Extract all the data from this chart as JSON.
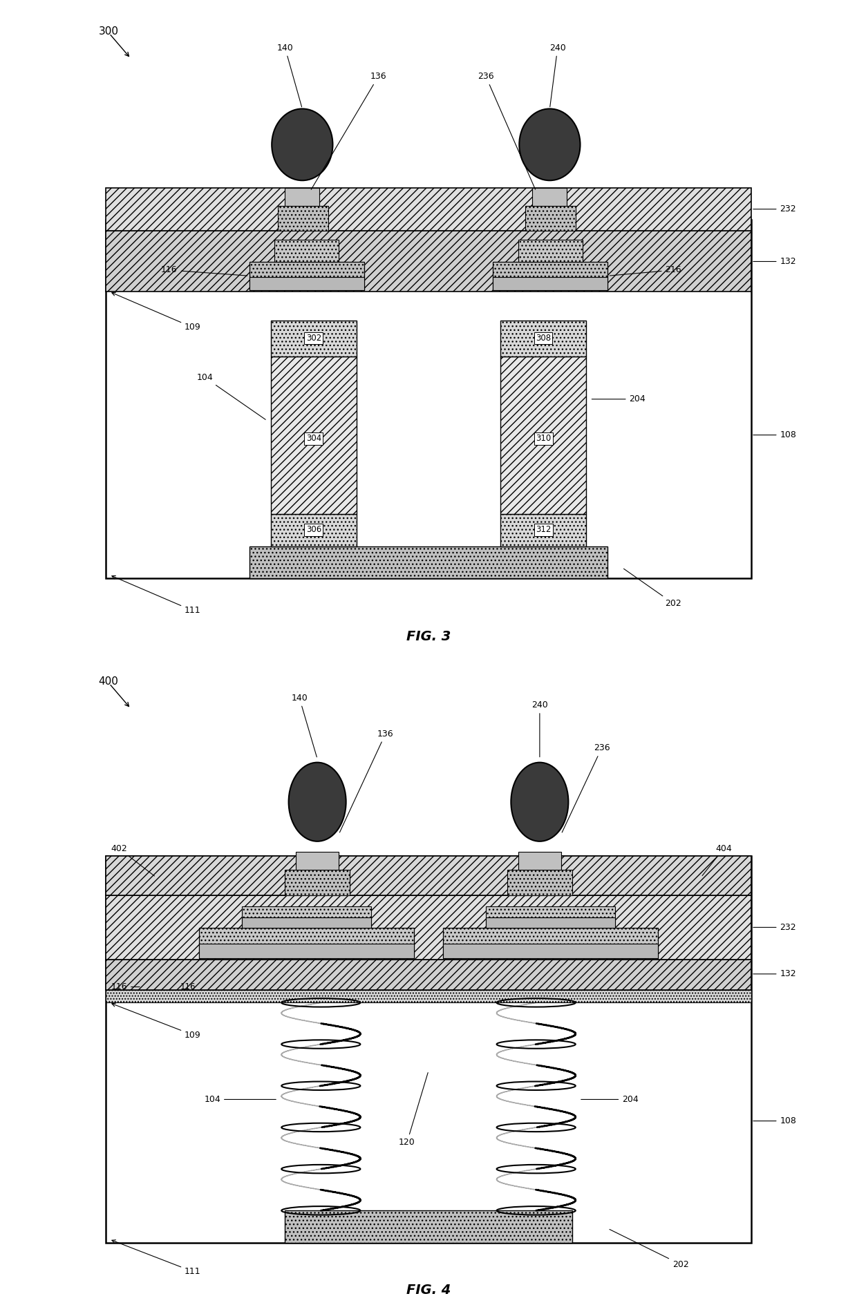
{
  "fig_width": 12.4,
  "fig_height": 18.89,
  "bg_color": "#ffffff",
  "fs_label": 9,
  "fs_fig": 14,
  "fs_num": 11,
  "fig3_title": "FIG. 3",
  "fig4_title": "FIG. 4",
  "fig3_num": "300",
  "fig4_num": "400"
}
